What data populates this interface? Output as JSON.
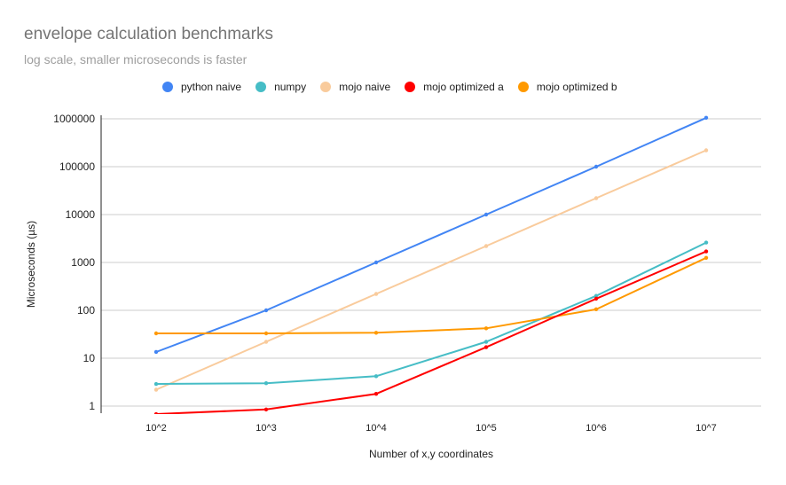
{
  "chart_data": {
    "type": "line",
    "title": "envelope calculation benchmarks",
    "subtitle": "log scale, smaller microseconds is faster",
    "xlabel": "Number of x,y coordinates",
    "ylabel": "Microseconds (µs)",
    "yscale": "log",
    "ylim": [
      0.6,
      1000000
    ],
    "yticks": [
      "1",
      "10",
      "100",
      "1000",
      "10000",
      "100000",
      "1000000"
    ],
    "categories": [
      "10^2",
      "10^3",
      "10^4",
      "10^5",
      "10^6",
      "10^7"
    ],
    "grid": true,
    "legend_position": "top",
    "series": [
      {
        "name": "python naive",
        "color": "#4285f4",
        "values": [
          13.5,
          100,
          1000,
          10000,
          100000,
          1050000
        ]
      },
      {
        "name": "numpy",
        "color": "#46bdc6",
        "values": [
          2.9,
          3.0,
          4.2,
          22,
          200,
          2600
        ]
      },
      {
        "name": "mojo naive",
        "color": "#f9cb9c",
        "values": [
          2.2,
          22,
          220,
          2200,
          22000,
          220000
        ]
      },
      {
        "name": "mojo optimized a",
        "color": "#ff0000",
        "values": [
          0.68,
          0.85,
          1.8,
          17,
          175,
          1700
        ]
      },
      {
        "name": "mojo optimized b",
        "color": "#ff9900",
        "values": [
          33,
          33,
          34,
          42,
          105,
          1250
        ]
      }
    ]
  }
}
